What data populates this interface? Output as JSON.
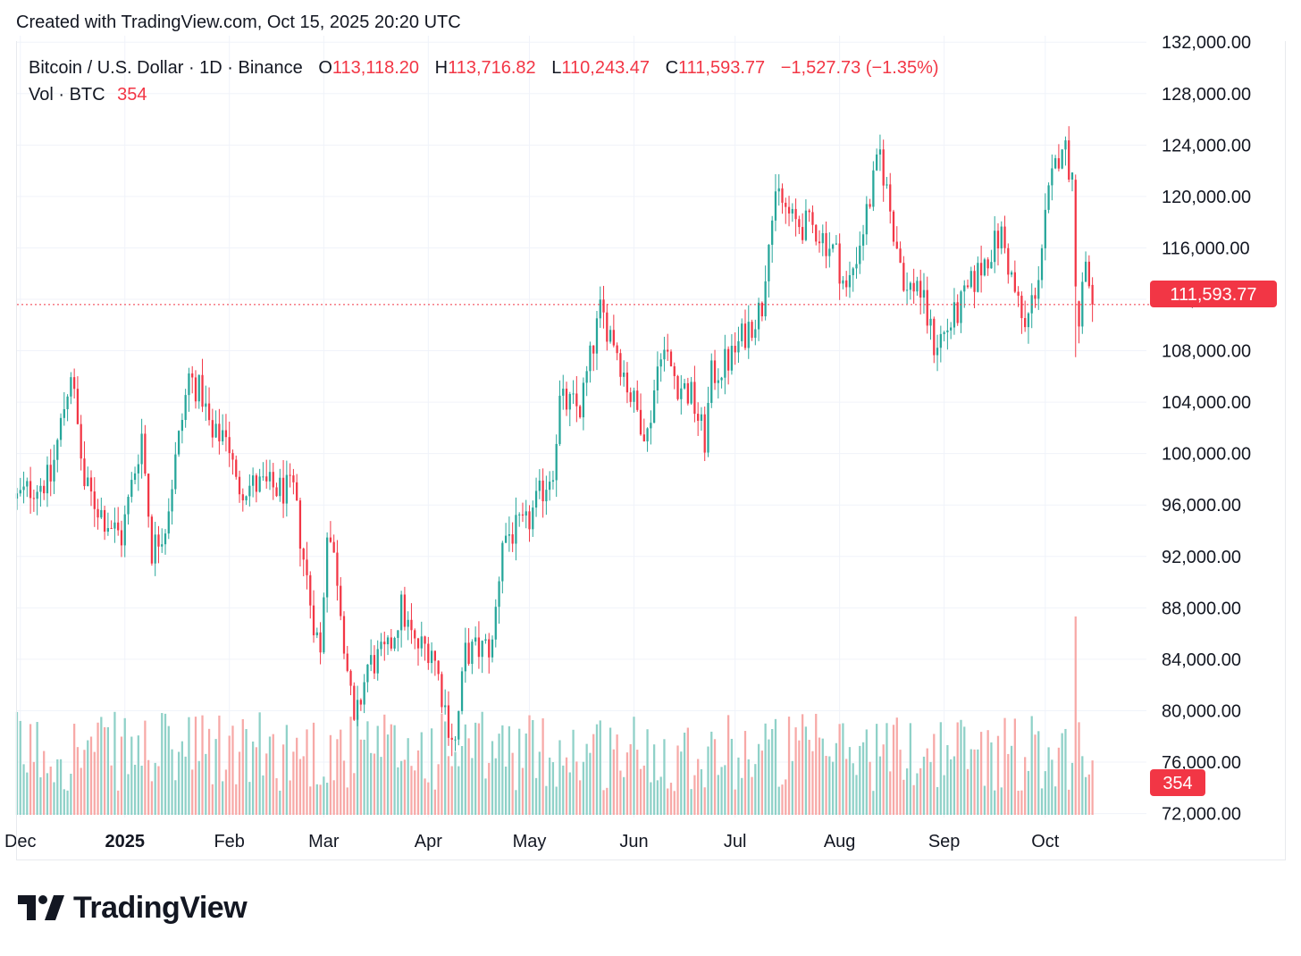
{
  "header": {
    "created_text": "Created with TradingView.com, Oct 15, 2025 20:20 UTC"
  },
  "legend": {
    "symbol": "Bitcoin / U.S. Dollar · 1D · Binance",
    "o_label": "O",
    "open": "113,118.20",
    "h_label": "H",
    "high": "113,716.82",
    "l_label": "L",
    "low": "110,243.47",
    "c_label": "C",
    "close": "111,593.77",
    "change": "−1,527.73 (−1.35%)",
    "vol_label": "Vol · BTC",
    "vol_value": "354"
  },
  "price_tag": "111,593.77",
  "volume_tag": "354",
  "brand": {
    "name": "TradingView"
  },
  "colors": {
    "up": "#26a69a",
    "down": "#f23645",
    "up_vol": "#8fd1c8",
    "down_vol": "#f7a9a7",
    "grid": "#f0f3fa",
    "text": "#131722"
  },
  "chart_data": {
    "type": "candlestick",
    "title": "Bitcoin / U.S. Dollar · 1D · Binance",
    "y_axis": {
      "ticks": [
        "132,000.00",
        "128,000.00",
        "124,000.00",
        "120,000.00",
        "116,000.00",
        "112,000.00",
        "108,000.00",
        "104,000.00",
        "100,000.00",
        "96,000.00",
        "92,000.00",
        "88,000.00",
        "84,000.00",
        "80,000.00",
        "76,000.00",
        "72,000.00"
      ],
      "tick_values": [
        132000,
        128000,
        124000,
        120000,
        116000,
        112000,
        108000,
        104000,
        100000,
        96000,
        92000,
        88000,
        84000,
        80000,
        76000,
        72000
      ],
      "range": [
        71000,
        132500
      ]
    },
    "x_axis": {
      "labels": [
        "Dec",
        "2025",
        "Feb",
        "Mar",
        "Apr",
        "May",
        "Jun",
        "Jul",
        "Aug",
        "Sep",
        "Oct"
      ],
      "label_dates": [
        "2024-12-01",
        "2025-01-01",
        "2025-02-01",
        "2025-03-01",
        "2025-04-01",
        "2025-05-01",
        "2025-06-01",
        "2025-07-01",
        "2025-08-01",
        "2025-09-01",
        "2025-10-01"
      ],
      "bold_labels": [
        "2025"
      ],
      "range": [
        "2024-11-30",
        "2025-10-31"
      ]
    },
    "last_price": 111593.77,
    "price_path": [
      [
        "2024-11-30",
        96500
      ],
      [
        "2024-12-05",
        97500
      ],
      [
        "2024-12-10",
        98000
      ],
      [
        "2024-12-16",
        106500
      ],
      [
        "2024-12-20",
        97500
      ],
      [
        "2024-12-26",
        95000
      ],
      [
        "2024-12-31",
        93500
      ],
      [
        "2025-01-06",
        101500
      ],
      [
        "2025-01-09",
        92500
      ],
      [
        "2025-01-13",
        94500
      ],
      [
        "2025-01-20",
        106000
      ],
      [
        "2025-01-24",
        104500
      ],
      [
        "2025-01-27",
        101000
      ],
      [
        "2025-01-31",
        102000
      ],
      [
        "2025-02-03",
        97500
      ],
      [
        "2025-02-10",
        97500
      ],
      [
        "2025-02-20",
        97000
      ],
      [
        "2025-02-25",
        88500
      ],
      [
        "2025-02-28",
        84300
      ],
      [
        "2025-03-02",
        94500
      ],
      [
        "2025-03-05",
        90500
      ],
      [
        "2025-03-10",
        78500
      ],
      [
        "2025-03-14",
        83500
      ],
      [
        "2025-03-20",
        84500
      ],
      [
        "2025-03-24",
        88000
      ],
      [
        "2025-03-28",
        85000
      ],
      [
        "2025-04-02",
        85000
      ],
      [
        "2025-04-07",
        79000
      ],
      [
        "2025-04-09",
        77500
      ],
      [
        "2025-04-12",
        84500
      ],
      [
        "2025-04-20",
        85000
      ],
      [
        "2025-04-23",
        93500
      ],
      [
        "2025-04-30",
        94300
      ],
      [
        "2025-05-08",
        99000
      ],
      [
        "2025-05-10",
        104000
      ],
      [
        "2025-05-16",
        103500
      ],
      [
        "2025-05-22",
        111000
      ],
      [
        "2025-05-26",
        109000
      ],
      [
        "2025-05-31",
        104500
      ],
      [
        "2025-06-05",
        101500
      ],
      [
        "2025-06-09",
        108500
      ],
      [
        "2025-06-14",
        105500
      ],
      [
        "2025-06-18",
        104500
      ],
      [
        "2025-06-22",
        101000
      ],
      [
        "2025-06-24",
        106000
      ],
      [
        "2025-06-30",
        107500
      ],
      [
        "2025-07-03",
        109000
      ],
      [
        "2025-07-09",
        111500
      ],
      [
        "2025-07-11",
        117500
      ],
      [
        "2025-07-14",
        120000
      ],
      [
        "2025-07-18",
        118000
      ],
      [
        "2025-07-25",
        117500
      ],
      [
        "2025-07-31",
        115500
      ],
      [
        "2025-08-03",
        112500
      ],
      [
        "2025-08-08",
        117500
      ],
      [
        "2025-08-13",
        123300
      ],
      [
        "2025-08-17",
        117500
      ],
      [
        "2025-08-21",
        112500
      ],
      [
        "2025-08-24",
        113500
      ],
      [
        "2025-08-29",
        108500
      ],
      [
        "2025-09-01",
        109300
      ],
      [
        "2025-09-05",
        111000
      ],
      [
        "2025-09-10",
        113500
      ],
      [
        "2025-09-14",
        115500
      ],
      [
        "2025-09-18",
        117000
      ],
      [
        "2025-09-22",
        112500
      ],
      [
        "2025-09-25",
        109500
      ],
      [
        "2025-09-29",
        114000
      ],
      [
        "2025-10-02",
        120000
      ],
      [
        "2025-10-06",
        124500
      ],
      [
        "2025-10-09",
        121500
      ],
      [
        "2025-10-10",
        113000
      ],
      [
        "2025-10-11",
        110700
      ],
      [
        "2025-10-13",
        115100
      ],
      [
        "2025-10-14",
        113100
      ],
      [
        "2025-10-15",
        111593.77
      ]
    ],
    "events": [
      {
        "date": "2025-10-10",
        "low": 107500,
        "volume": 1
      }
    ],
    "volume": {
      "series_name": "Vol · BTC",
      "last": 354,
      "relative_max": 1
    },
    "series": [
      {
        "name": "Bitcoin / U.S. Dollar",
        "role": "ohlc"
      },
      {
        "name": "Vol · BTC",
        "role": "volume"
      }
    ],
    "grid": true,
    "legend_position": "top-left"
  }
}
